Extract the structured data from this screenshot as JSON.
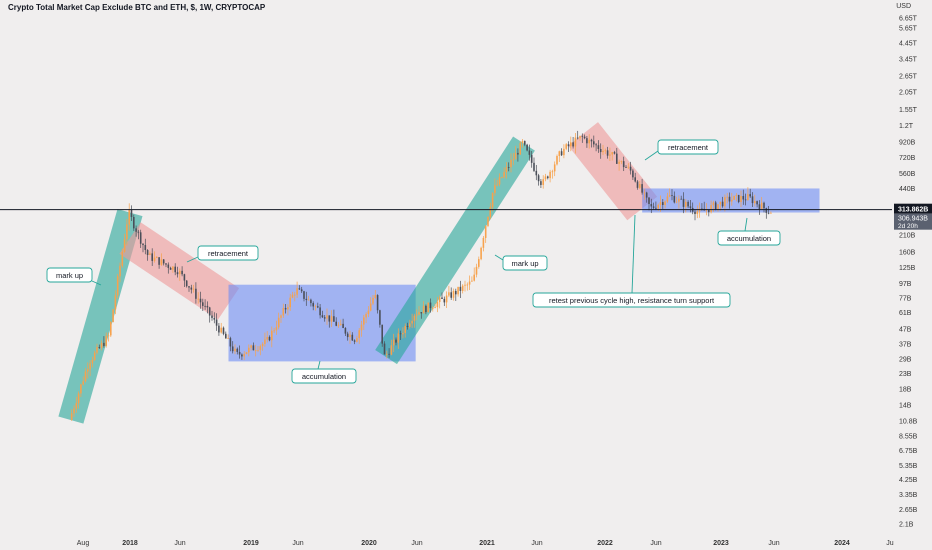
{
  "header": {
    "title": "Crypto Total Market Cap Exclude BTC and ETH, $, 1W, CRYPTOCAP",
    "currency": "USD"
  },
  "colors": {
    "background": "#f0eeee",
    "up": "#f7a24d",
    "down": "#4a4e58",
    "markup_zone": "#26a69a",
    "retracement_zone": "#ef9a9a",
    "accumulation_zone": "#6d8cf5",
    "price_line": "#131722",
    "callout_border": "#26a69a"
  },
  "chart_data": {
    "type": "candlestick",
    "title": "Crypto Total Market Cap Exclude BTC and ETH, $, 1W, CRYPTOCAP",
    "y_scale": "log",
    "y_unit": "USD",
    "ylim": [
      "2.1B",
      "6.65T"
    ],
    "y_ticks": [
      "6.65T",
      "5.65T",
      "4.45T",
      "3.45T",
      "2.65T",
      "2.05T",
      "1.55T",
      "1.2T",
      "920B",
      "720B",
      "560B",
      "440B",
      "210B",
      "160B",
      "125B",
      "97B",
      "77B",
      "61B",
      "47B",
      "37B",
      "29B",
      "23B",
      "18B",
      "14B",
      "10.8B",
      "8.55B",
      "6.75B",
      "5.35B",
      "4.25B",
      "3.35B",
      "2.65B",
      "2.1B"
    ],
    "x_ticks": [
      "Aug",
      "2018",
      "Jun",
      "2019",
      "Jun",
      "2020",
      "Jun",
      "2021",
      "Jun",
      "2022",
      "Jun",
      "2023",
      "Jun",
      "2024",
      "Ju"
    ],
    "current_price_label": "313.862B",
    "current_close_label": "306.943B",
    "countdown_label": "2d 20h",
    "price_path": [
      {
        "date": "2017-07",
        "value": 11
      },
      {
        "date": "2017-09",
        "value": 28
      },
      {
        "date": "2017-11",
        "value": 42
      },
      {
        "date": "2018-01",
        "value": 300
      },
      {
        "date": "2018-03",
        "value": 150
      },
      {
        "date": "2018-06",
        "value": 120
      },
      {
        "date": "2018-09",
        "value": 62
      },
      {
        "date": "2018-12",
        "value": 31
      },
      {
        "date": "2019-03",
        "value": 38
      },
      {
        "date": "2019-06",
        "value": 88
      },
      {
        "date": "2019-09",
        "value": 58
      },
      {
        "date": "2019-12",
        "value": 40
      },
      {
        "date": "2020-02",
        "value": 82
      },
      {
        "date": "2020-03",
        "value": 30
      },
      {
        "date": "2020-06",
        "value": 60
      },
      {
        "date": "2020-09",
        "value": 75
      },
      {
        "date": "2020-12",
        "value": 100
      },
      {
        "date": "2021-02",
        "value": 420
      },
      {
        "date": "2021-05",
        "value": 900
      },
      {
        "date": "2021-07",
        "value": 470
      },
      {
        "date": "2021-09",
        "value": 800
      },
      {
        "date": "2021-11",
        "value": 1000
      },
      {
        "date": "2022-02",
        "value": 750
      },
      {
        "date": "2022-04",
        "value": 580
      },
      {
        "date": "2022-06",
        "value": 320
      },
      {
        "date": "2022-08",
        "value": 390
      },
      {
        "date": "2022-11",
        "value": 300
      },
      {
        "date": "2023-02",
        "value": 370
      },
      {
        "date": "2023-04",
        "value": 380
      },
      {
        "date": "2023-06",
        "value": 307
      }
    ],
    "zones": [
      {
        "kind": "markup",
        "label": "mark up",
        "from": {
          "date": "2017-07",
          "value": 11
        },
        "to": {
          "date": "2018-01",
          "value": 300
        }
      },
      {
        "kind": "retracement",
        "label": "retracement",
        "from": {
          "date": "2018-01",
          "value": 200
        },
        "to": {
          "date": "2018-11",
          "value": 70
        }
      },
      {
        "kind": "accumulation",
        "label": "accumulation",
        "from": {
          "date": "2018-11",
          "value": 95
        },
        "to": {
          "date": "2020-06",
          "value": 28
        }
      },
      {
        "kind": "markup",
        "label": "mark up",
        "from": {
          "date": "2020-03",
          "value": 30
        },
        "to": {
          "date": "2021-05",
          "value": 900
        }
      },
      {
        "kind": "retracement",
        "label": "retracement",
        "from": {
          "date": "2021-11",
          "value": 1050
        },
        "to": {
          "date": "2022-05",
          "value": 320
        }
      },
      {
        "kind": "accumulation",
        "label": "accumulation",
        "from": {
          "date": "2022-05",
          "value": 440
        },
        "to": {
          "date": "2023-11",
          "value": 300
        }
      }
    ],
    "annotations": [
      {
        "text": "mark up"
      },
      {
        "text": "retracement"
      },
      {
        "text": "accumulation"
      },
      {
        "text": "mark up"
      },
      {
        "text": "retracement"
      },
      {
        "text": "retest previous cycle high, resistance turn support"
      },
      {
        "text": "accumulation"
      }
    ],
    "horizontal_line": {
      "value": 313.862
    }
  }
}
